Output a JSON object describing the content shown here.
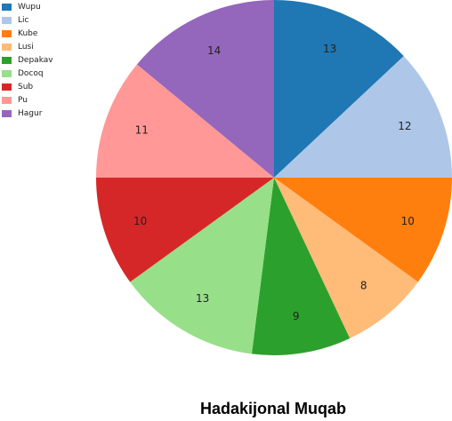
{
  "chart_data": {
    "type": "pie",
    "title": "Hadakijonal Muqab",
    "legend_position": "top-left",
    "categories": [
      "Wupu",
      "Lic",
      "Kube",
      "Lusi",
      "Depakav",
      "Docoq",
      "Sub",
      "Pu",
      "Hagur"
    ],
    "values": [
      13,
      12,
      10,
      8,
      9,
      13,
      10,
      11,
      14
    ],
    "colors": [
      "#1f77b4",
      "#aec7e8",
      "#ff7f0e",
      "#ffbb78",
      "#2ca02c",
      "#98df8a",
      "#d62728",
      "#ff9896",
      "#9467bd"
    ]
  }
}
